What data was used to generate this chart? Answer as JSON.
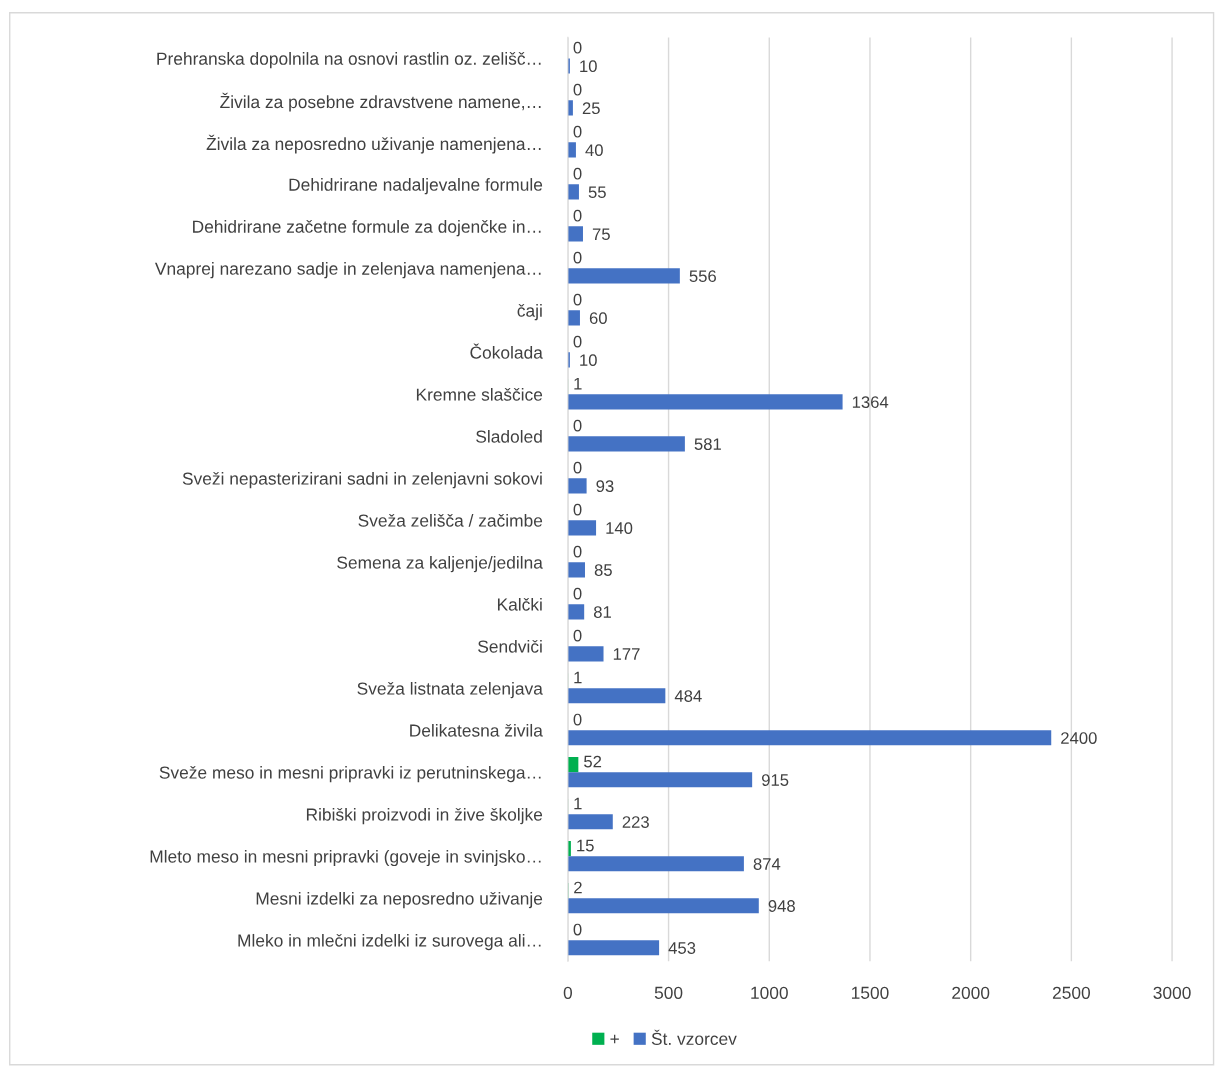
{
  "chart_data": {
    "type": "bar",
    "orientation": "horizontal",
    "categories": [
      "Prehranska dopolnila na osnovi rastlin oz. zelišč…",
      "Živila za posebne zdravstvene namene,…",
      "Živila za neposredno uživanje namenjena…",
      "Dehidrirane nadaljevalne formule",
      "Dehidrirane začetne formule za dojenčke in…",
      "Vnaprej narezano sadje in zelenjava namenjena…",
      "čaji",
      "Čokolada",
      "Kremne slaščice",
      "Sladoled",
      "Sveži nepasterizirani sadni in zelenjavni sokovi",
      "Sveža zelišča / začimbe",
      "Semena za kaljenje/jedilna",
      "Kalčki",
      "Sendviči",
      "Sveža listnata zelenjava",
      "Delikatesna živila",
      "Sveže meso in mesni pripravki iz perutninskega…",
      "Ribiški proizvodi in žive školjke",
      "Mleto meso in mesni pripravki (goveje in svinjsko…",
      "Mesni izdelki za neposredno uživanje",
      "Mleko in mlečni izdelki iz surovega ali…"
    ],
    "series": [
      {
        "name": "+",
        "color": "#00b050",
        "values": [
          0,
          0,
          0,
          0,
          0,
          0,
          0,
          0,
          1,
          0,
          0,
          0,
          0,
          0,
          0,
          1,
          0,
          52,
          1,
          15,
          2,
          0
        ]
      },
      {
        "name": "Št. vzorcev",
        "color": "#4472c4",
        "values": [
          10,
          25,
          40,
          55,
          75,
          556,
          60,
          10,
          1364,
          581,
          93,
          140,
          85,
          81,
          177,
          484,
          2400,
          915,
          223,
          874,
          948,
          453
        ]
      }
    ],
    "xlim": [
      0,
      3200
    ],
    "xticks": [
      0,
      500,
      1000,
      1500,
      2000,
      2500,
      3000
    ],
    "grid": "x",
    "legend": "bottom",
    "data_labels": true
  }
}
